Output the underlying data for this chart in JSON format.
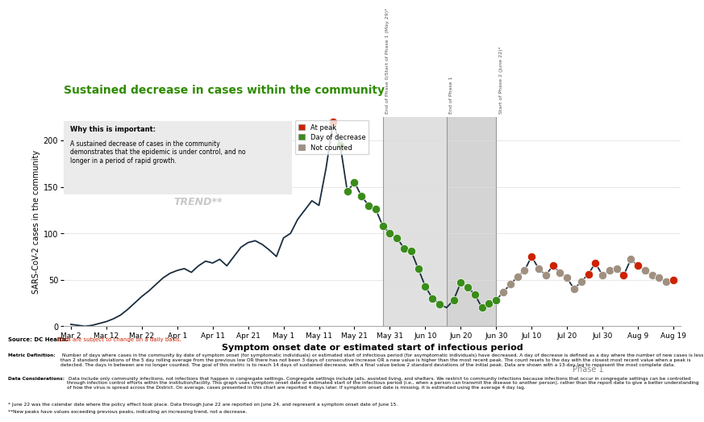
{
  "title": "Sustained decrease in cases within the community",
  "xlabel": "Symptom onset date or estimated start of infectious period",
  "ylabel": "SARS-CoV-2 cases in the community",
  "title_color": "#2e8b00",
  "background_color": "#ffffff",
  "line_color": "#1a2e40",
  "at_peak_color": "#cc2200",
  "day_decrease_color": "#3a8c1a",
  "not_counted_color": "#a09080",
  "ylim": [
    0,
    225
  ],
  "yticks": [
    0,
    50,
    100,
    150,
    200
  ],
  "values": [
    2,
    1,
    0,
    1,
    3,
    5,
    8,
    12,
    18,
    25,
    32,
    38,
    45,
    52,
    57,
    60,
    62,
    58,
    65,
    70,
    68,
    72,
    65,
    75,
    85,
    90,
    92,
    88,
    82,
    75,
    95,
    100,
    115,
    125,
    135,
    130,
    170,
    220,
    195,
    145,
    155,
    140,
    130,
    126,
    108,
    100,
    95,
    84,
    81,
    62,
    43,
    30,
    24,
    20,
    28,
    47,
    42,
    34,
    20,
    25,
    28,
    37,
    45,
    53,
    60,
    75,
    62,
    55,
    65,
    58,
    52,
    40,
    48,
    56,
    68,
    55,
    60,
    62,
    55,
    72,
    65,
    60,
    55,
    52,
    48,
    50
  ],
  "point_types": [
    "none",
    "none",
    "none",
    "none",
    "none",
    "none",
    "none",
    "none",
    "none",
    "none",
    "none",
    "none",
    "none",
    "none",
    "none",
    "none",
    "none",
    "none",
    "none",
    "none",
    "none",
    "none",
    "none",
    "none",
    "none",
    "none",
    "none",
    "none",
    "none",
    "none",
    "none",
    "none",
    "none",
    "none",
    "none",
    "none",
    "none",
    "peak",
    "decrease",
    "decrease",
    "decrease",
    "decrease",
    "decrease",
    "decrease",
    "decrease",
    "decrease",
    "decrease",
    "decrease",
    "decrease",
    "decrease",
    "decrease",
    "decrease",
    "decrease",
    "none",
    "decrease",
    "decrease",
    "decrease",
    "decrease",
    "decrease",
    "decrease",
    "decrease",
    "nc",
    "nc",
    "nc",
    "nc",
    "peak",
    "nc",
    "nc",
    "peak",
    "nc",
    "nc",
    "nc",
    "nc",
    "peak",
    "peak",
    "nc",
    "nc",
    "nc",
    "peak",
    "nc",
    "peak",
    "nc",
    "nc",
    "nc",
    "nc",
    "peak"
  ],
  "xtick_labels": [
    "Mar 2",
    "Mar 12",
    "Mar 22",
    "Apr 1",
    "Apr 11",
    "Apr 21",
    "May 1",
    "May 11",
    "May 21",
    "May 31",
    "Jun 10",
    "Jun 20",
    "Jun 30",
    "Jul 10",
    "Jul 20",
    "Jul 30",
    "Aug 9",
    "Aug 19"
  ],
  "xtick_positions": [
    0,
    5,
    10,
    15,
    20,
    25,
    30,
    35,
    40,
    45,
    50,
    55,
    60,
    65,
    70,
    75,
    80,
    85
  ],
  "vline1_x": 44,
  "vline2_x": 53,
  "vline3_x": 60,
  "vline1_label": "End of Phase 0/Start of Phase 1 (May 29)*",
  "vline2_label": "End of Phase 1",
  "vline3_label": "Start of Phase 2 (June 22)*",
  "shade1_start": 44,
  "shade1_end": 60,
  "shade2_start": 53,
  "shade2_end": 60,
  "annotation_text_bold": "Why this is important:",
  "annotation_text": "A sustained decrease of cases in the community\ndemonstrates that the epidemic is under control, and no\nlonger in a period of rapid growth.",
  "increasing_trend_text": "INCREASING\nTREND**",
  "phase1_label": "Phase 1",
  "source_bold": "Source: DC Health;",
  "source_regular": " Data are subject to change on a daily basis.",
  "metric_bold": "Metric Definition:",
  "metric_text": " Number of days where cases in the community by date of symptom onset (for symptomatic individuals) or estimated start of infectious period (for asymptomatic individuals) have decreased. A day of decrease is defined as a day where the number of new cases is less than 2 standard deviations of the 5 day rolling average from the previous low OR there has not been 3 days of consecutive increase OR a new value is higher than the most recent peak. The count resets to the day with the closest most recent value when a peak is detected. The days in between are no longer counted. The goal of this metric is to reach 14 days of sustained decrease, with a final value below 2 standard deviations of the initial peak. Data are shown with a 13-day lag to represent the most complete data.",
  "data_bold": "Data Considerations:",
  "data_text": " Data include only community infections, not infections that happen in congregate settings. Congregate settings include jails, assisted living, and shelters. We restrict to community infections because infections that occur in congregate settings can be controlled through infection control efforts within the institution/facility. This graph uses symptom onset date or estimated start of the infectious period (i.e., when a person can transmit the disease to another person), rather than the report date to give a better understanding of how the virus is spread across the District. On average, cases presented in this chart are reported 4 days later. If symptom onset date is missing, it is estimated using the average 4 day lag.",
  "footnote1": "* June 22 was the calendar date where the policy effect took place. Data through June 22 are reported on June 24, and represent a symptom onset date of June 15.",
  "footnote2": "**New peaks have values exceeding previous peaks, indicating an increasing trend, not a decrease."
}
